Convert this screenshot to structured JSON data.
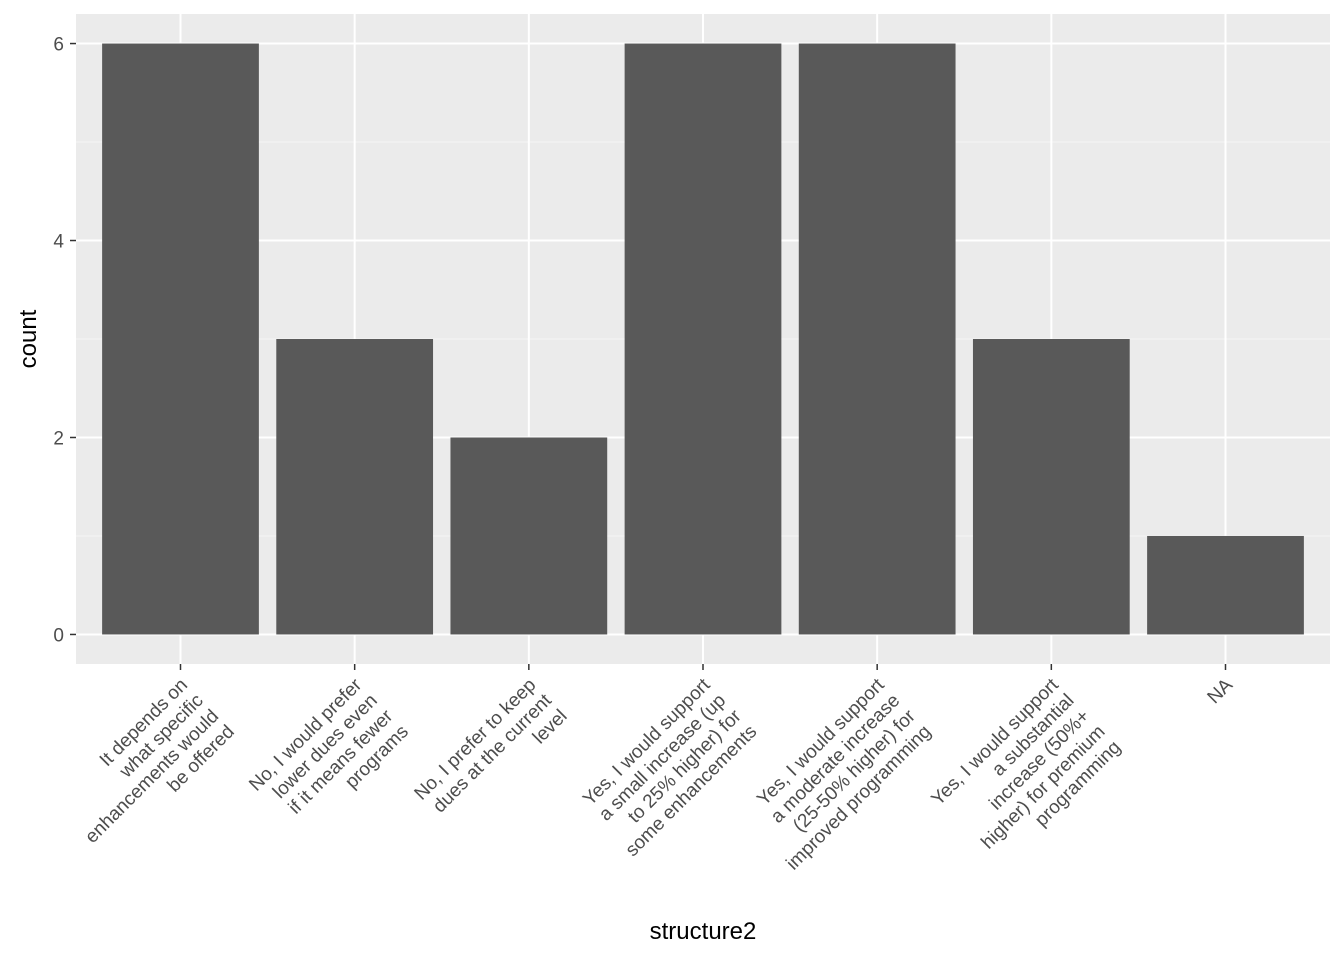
{
  "chart_data": {
    "type": "bar",
    "title": "",
    "xlabel": "structure2",
    "ylabel": "count",
    "ylim": [
      -0.3,
      6.3
    ],
    "yticks": [
      0,
      2,
      4,
      6
    ],
    "grid": true,
    "categories": [
      {
        "lines": [
          "It depends on",
          "what specific",
          "enhancements would",
          "be offered"
        ]
      },
      {
        "lines": [
          "No, I would prefer",
          "lower dues even",
          "if it means fewer",
          "programs"
        ]
      },
      {
        "lines": [
          "No, I prefer to keep",
          "dues at the current",
          "level"
        ]
      },
      {
        "lines": [
          "Yes, I would support",
          "a small increase (up",
          "to 25% higher) for",
          "some enhancements"
        ]
      },
      {
        "lines": [
          "Yes, I would support",
          "a moderate increase",
          "(25-50% higher) for",
          "improved programming"
        ]
      },
      {
        "lines": [
          "Yes, I would support",
          "a substantial",
          "increase (50%+",
          "higher) for premium",
          "programming"
        ]
      },
      {
        "lines": [
          "NA"
        ]
      }
    ],
    "values": [
      6,
      3,
      2,
      6,
      6,
      3,
      1
    ],
    "colors": {
      "panel": "#ebebeb",
      "grid_major": "#ffffff",
      "bar": "#595959",
      "tick": "#333333"
    }
  }
}
